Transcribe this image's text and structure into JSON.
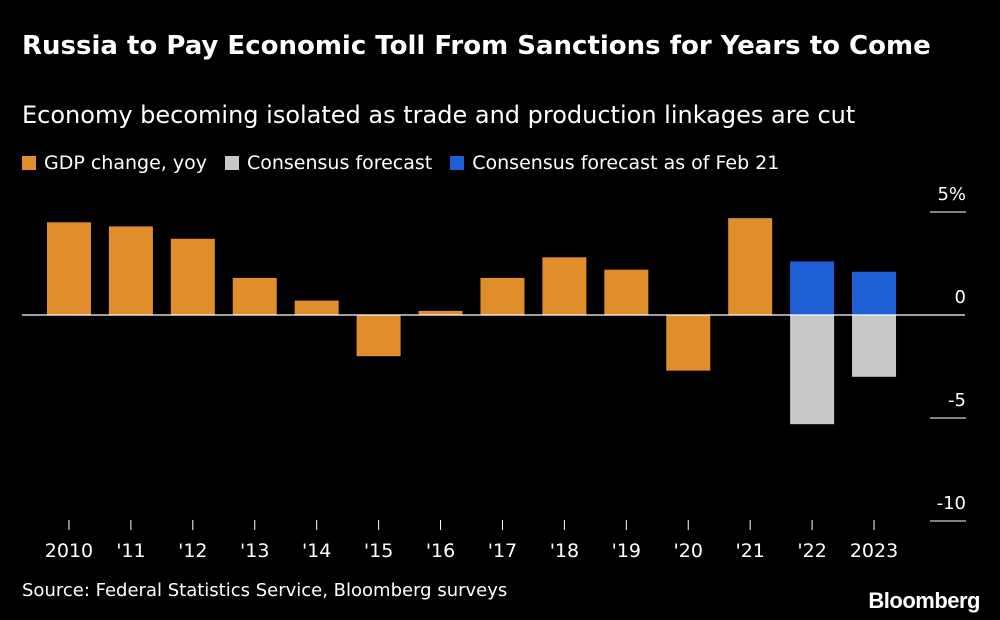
{
  "chart_data": {
    "type": "bar",
    "title": "Russia to Pay Economic Toll From Sanctions for Years to Come",
    "subtitle": "Economy becoming isolated as trade and production linkages are cut",
    "categories": [
      "2010",
      "'11",
      "'12",
      "'13",
      "'14",
      "'15",
      "'16",
      "'17",
      "'18",
      "'19",
      "'20",
      "'21",
      "'22",
      "2023"
    ],
    "series": [
      {
        "name": "GDP change, yoy",
        "color": "#e08e2b",
        "values": [
          4.5,
          4.3,
          3.7,
          1.8,
          0.7,
          -2.0,
          0.2,
          1.8,
          2.8,
          2.2,
          -2.7,
          4.7,
          null,
          null
        ]
      },
      {
        "name": "Consensus forecast",
        "color": "#c8c8c8",
        "values": [
          null,
          null,
          null,
          null,
          null,
          null,
          null,
          null,
          null,
          null,
          null,
          null,
          -5.3,
          -3.0
        ]
      },
      {
        "name": "Consensus forecast as of Feb 21",
        "color": "#1f5fd6",
        "values": [
          null,
          null,
          null,
          null,
          null,
          null,
          null,
          null,
          null,
          null,
          null,
          null,
          2.6,
          2.1
        ]
      }
    ],
    "yticks": [
      {
        "value": 5,
        "label": "5%"
      },
      {
        "value": 0,
        "label": "0"
      },
      {
        "value": -5,
        "label": "-5"
      },
      {
        "value": -10,
        "label": "-10"
      }
    ],
    "ylim": [
      -10,
      5
    ],
    "xlabel": "",
    "ylabel": "",
    "legend_position": "top-left"
  },
  "source": "Source: Federal Statistics Service, Bloomberg surveys",
  "brand": "Bloomberg"
}
